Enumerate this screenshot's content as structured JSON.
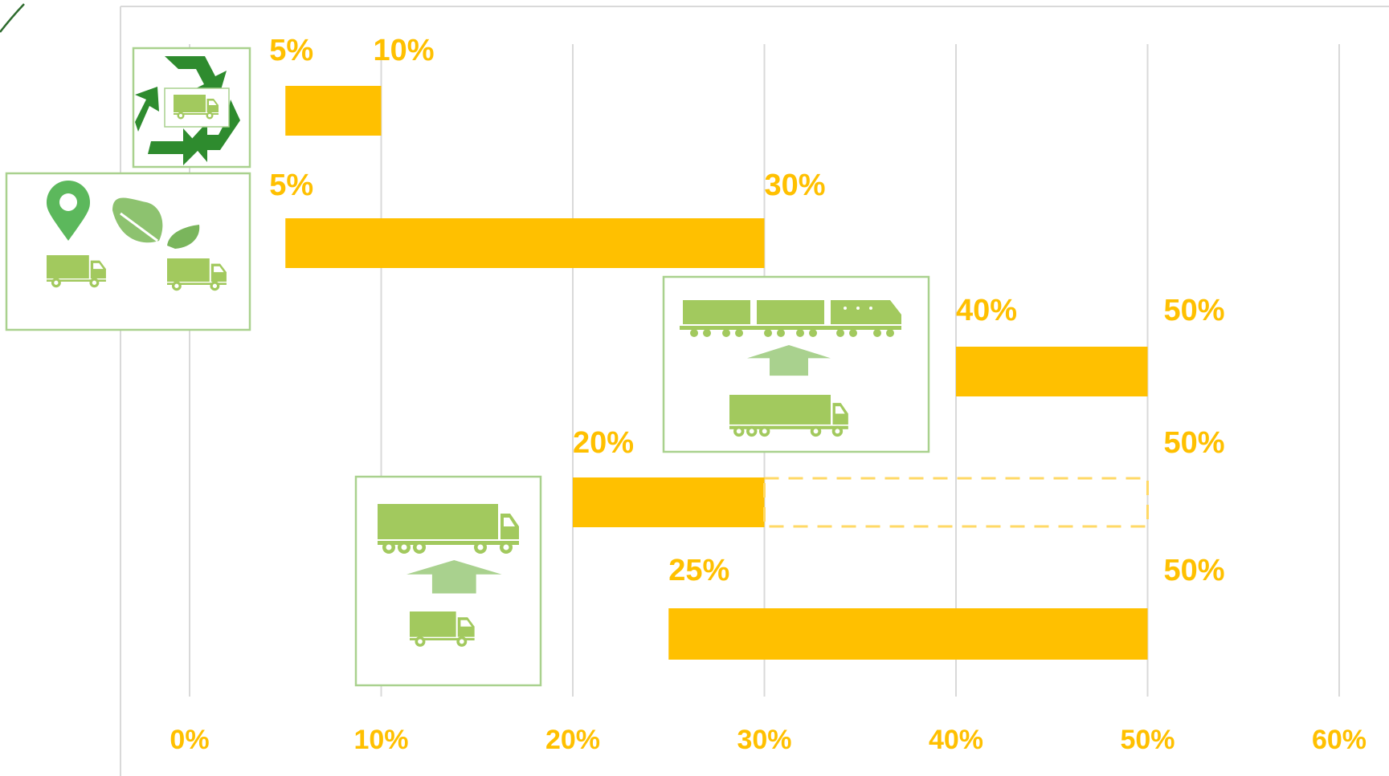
{
  "chart_data": {
    "type": "bar",
    "orientation": "horizontal-range",
    "title": "",
    "xlabel": "",
    "ylabel": "",
    "xlim": [
      0,
      60
    ],
    "x_ticks": [
      0,
      10,
      20,
      30,
      40,
      50,
      60
    ],
    "x_tick_labels": [
      "0%",
      "10%",
      "20%",
      "30%",
      "40%",
      "50%",
      "60%"
    ],
    "grid": "vertical",
    "legend": "none",
    "bar_color": "#FFC000",
    "icon_color": "#A2C95E",
    "series": [
      {
        "start": 5,
        "end": 10,
        "start_label": "5%",
        "end_label": "10%",
        "icon": "recycle-truck-icon"
      },
      {
        "start": 5,
        "end": 30,
        "start_label": "5%",
        "end_label": "30%",
        "icon": "eco-location-truck-icon"
      },
      {
        "start": 40,
        "end": 50,
        "start_label": "40%",
        "end_label": "50%",
        "icon": "truck-to-train-icon"
      },
      {
        "start": 20,
        "end": 30,
        "dashed_end": 50,
        "start_label": "20%",
        "end_label": "50%",
        "icon": ""
      },
      {
        "start": 25,
        "end": 50,
        "start_label": "25%",
        "end_label": "50%",
        "icon": "small-to-large-truck-icon"
      }
    ]
  }
}
